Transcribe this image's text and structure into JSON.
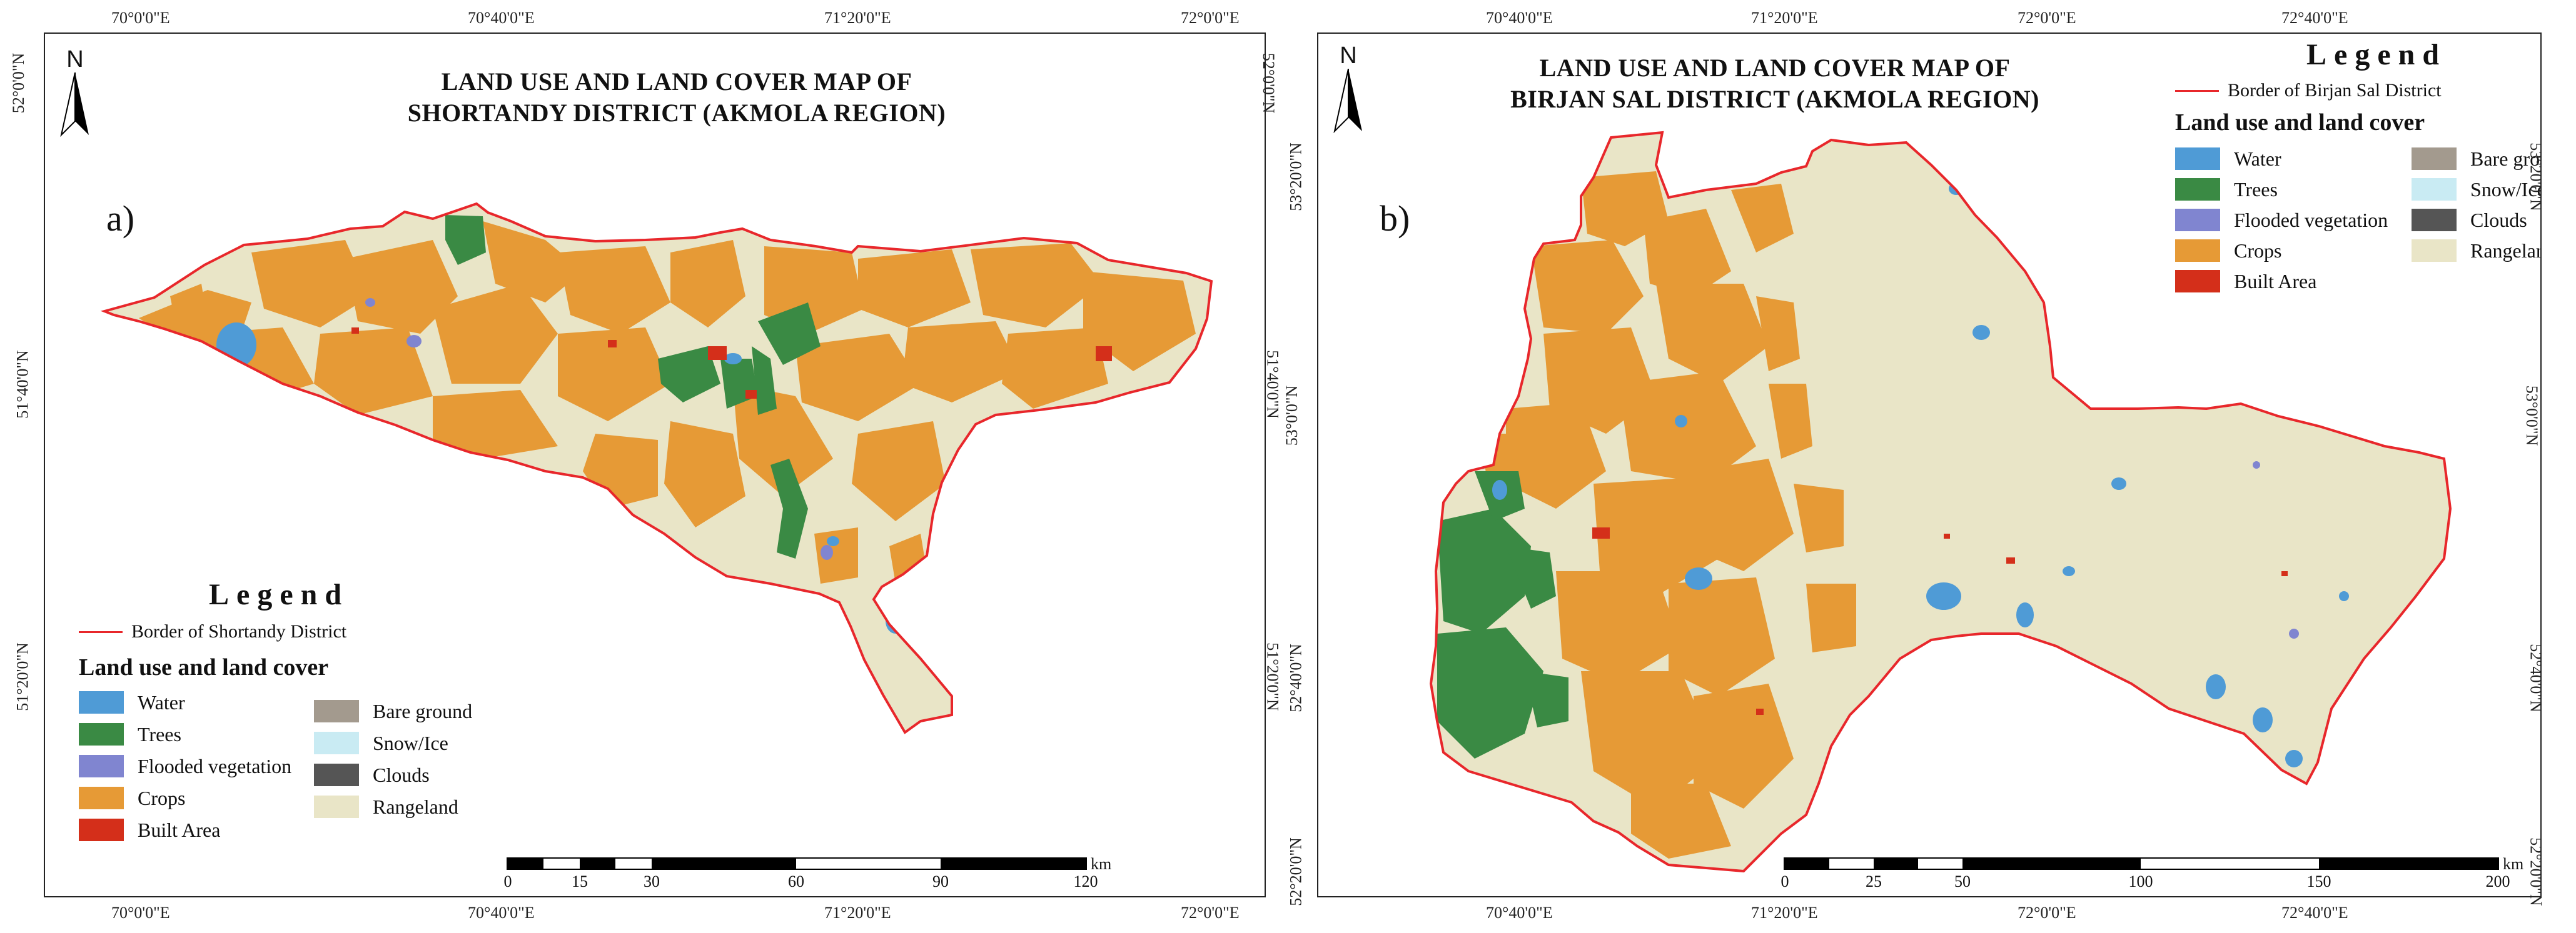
{
  "colors": {
    "water": "#4f9bd6",
    "trees": "#3a8a44",
    "flooded_vegetation": "#8085d0",
    "crops": "#e69a36",
    "built_area": "#d42f1a",
    "bare_ground": "#a39a8e",
    "snow_ice": "#c9ebf3",
    "clouds": "#555555",
    "rangeland": "#e9e5c7",
    "border": "#e8272b"
  },
  "legend_common": {
    "heading": "Legend",
    "subtitle": "Land use and land cover",
    "classes": [
      {
        "label": "Water",
        "color_key": "water"
      },
      {
        "label": "Trees",
        "color_key": "trees"
      },
      {
        "label": "Flooded vegetation",
        "color_key": "flooded_vegetation"
      },
      {
        "label": "Crops",
        "color_key": "crops"
      },
      {
        "label": "Built Area",
        "color_key": "built_area"
      },
      {
        "label": "Bare ground",
        "color_key": "bare_ground"
      },
      {
        "label": "Snow/Ice",
        "color_key": "snow_ice"
      },
      {
        "label": "Clouds",
        "color_key": "clouds"
      },
      {
        "label": "Rangeland",
        "color_key": "rangeland"
      }
    ]
  },
  "map_a": {
    "title_line1": "LAND USE AND LAND COVER MAP OF",
    "title_line2": "SHORTANDY DISTRICT (AKMOLA REGION)",
    "panel_label": "a)",
    "north_label": "N",
    "border_label": "Border of Shortandy District",
    "top_coords": [
      "70°0'0\"E",
      "70°40'0\"E",
      "71°20'0\"E",
      "72°0'0\"E"
    ],
    "bottom_coords": [
      "70°0'0\"E",
      "70°40'0\"E",
      "71°20'0\"E",
      "72°0'0\"E"
    ],
    "left_coords": [
      "52°0'0\"N",
      "51°40'0\"N",
      "51°20'0\"N"
    ],
    "right_coords": [
      "52°0'0\"N",
      "51°40'0\"N",
      "51°20'0\"N"
    ],
    "scale_ticks": [
      "0",
      "15",
      "30",
      "60",
      "90",
      "120"
    ],
    "scale_unit": "km"
  },
  "map_b": {
    "title_line1": "LAND USE AND LAND COVER MAP OF",
    "title_line2": "BIRJAN SAL DISTRICT (AKMOLA REGION)",
    "panel_label": "b)",
    "north_label": "N",
    "border_label": "Border of Birjan Sal District",
    "top_coords": [
      "70°40'0\"E",
      "71°20'0\"E",
      "72°0'0\"E",
      "72°40'0\"E"
    ],
    "bottom_coords": [
      "70°40'0\"E",
      "71°20'0\"E",
      "72°0'0\"E",
      "72°40'0\"E"
    ],
    "left_coords": [
      "53°20'0\"N",
      "53°0'0\"N",
      "52°40'0\"N",
      "52°20'0\"N"
    ],
    "right_coords": [
      "53°20'0\"N",
      "53°0'0\"N",
      "52°40'0\"N",
      "52°20'0\"N"
    ],
    "scale_ticks": [
      "0",
      "25",
      "50",
      "100",
      "150",
      "200"
    ],
    "scale_unit": "km"
  }
}
